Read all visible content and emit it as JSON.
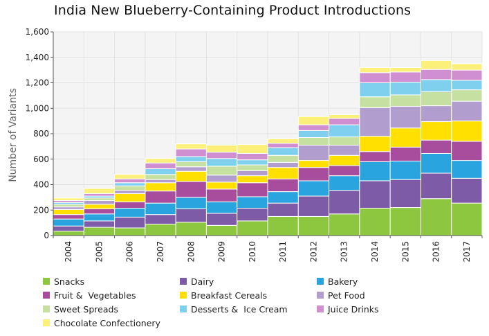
{
  "chart_data": {
    "type": "bar",
    "stacked": true,
    "title": "India New Blueberry-Containing Product Introductions",
    "xlabel": "",
    "ylabel": "Number of Variants",
    "ylim": [
      0,
      1600
    ],
    "yticks": [
      0,
      200,
      400,
      600,
      800,
      1000,
      1200,
      1400,
      1600
    ],
    "ytick_labels": [
      "0",
      "200",
      "400",
      "600",
      "800",
      "1,000",
      "1,200",
      "1,400",
      "1,600"
    ],
    "grid": true,
    "legend_position": "bottom",
    "categories": [
      "2004",
      "2005",
      "2006",
      "2007",
      "2008",
      "2009",
      "2010",
      "2011",
      "2012",
      "2013",
      "2014",
      "2015",
      "2016",
      "2017"
    ],
    "series": [
      {
        "name": "Snacks",
        "color": "#8dc63f",
        "values": [
          35,
          65,
          60,
          90,
          105,
          80,
          115,
          150,
          150,
          170,
          215,
          220,
          290,
          255
        ]
      },
      {
        "name": "Dairy",
        "color": "#7d5ba6",
        "values": [
          40,
          50,
          85,
          75,
          105,
          95,
          100,
          105,
          160,
          185,
          215,
          220,
          200,
          195
        ]
      },
      {
        "name": "Bakery",
        "color": "#2aa4df",
        "values": [
          55,
          55,
          70,
          90,
          90,
          90,
          90,
          90,
          120,
          115,
          150,
          145,
          155,
          140
        ]
      },
      {
        "name": "Fruit &  Vegetables",
        "color": "#a84c9e",
        "values": [
          35,
          40,
          50,
          95,
          125,
          100,
          110,
          100,
          105,
          80,
          80,
          110,
          105,
          150
        ]
      },
      {
        "name": "Breakfast Cereals",
        "color": "#ffe000",
        "values": [
          40,
          35,
          65,
          65,
          80,
          55,
          55,
          90,
          55,
          80,
          120,
          150,
          145,
          160
        ]
      },
      {
        "name": "Pet Food",
        "color": "#b29dcf",
        "values": [
          20,
          30,
          25,
          25,
          35,
          55,
          40,
          40,
          120,
          80,
          225,
          170,
          125,
          155
        ]
      },
      {
        "name": "Sweet Spreads",
        "color": "#c5e0a0",
        "values": [
          20,
          20,
          35,
          40,
          40,
          70,
          45,
          55,
          60,
          65,
          85,
          90,
          110,
          90
        ]
      },
      {
        "name": "Desserts &  Ice Cream",
        "color": "#7fd0ee",
        "values": [
          15,
          15,
          25,
          45,
          40,
          60,
          40,
          60,
          55,
          95,
          110,
          100,
          95,
          75
        ]
      },
      {
        "name": "Juice Drinks",
        "color": "#cf8fd0",
        "values": [
          15,
          20,
          30,
          45,
          60,
          50,
          50,
          35,
          45,
          50,
          80,
          80,
          80,
          80
        ]
      },
      {
        "name": "Chocolate Confectionery",
        "color": "#fdf07a",
        "values": [
          20,
          40,
          35,
          35,
          40,
          55,
          70,
          35,
          65,
          30,
          40,
          35,
          70,
          50
        ]
      }
    ]
  },
  "colors": {
    "grid": "#e2e2e2",
    "plot_background": "#f4f4f4",
    "axis": "#555555",
    "bar_edge": "#ffffff"
  }
}
